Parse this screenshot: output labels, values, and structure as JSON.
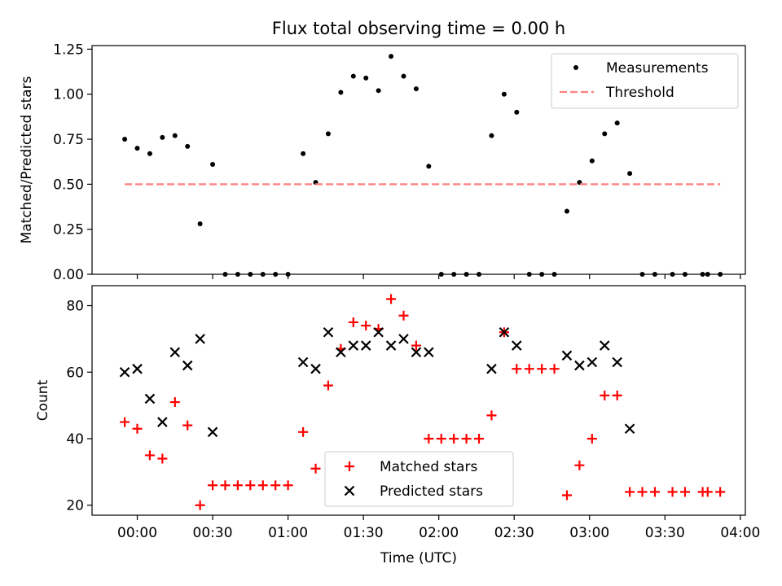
{
  "figure": {
    "title": "Flux total observing time = 0.00 h"
  },
  "chart_data": [
    {
      "type": "scatter",
      "panel": "top",
      "title": "Flux total observing time = 0.00 h",
      "xlabel": "",
      "ylabel": "Matched/Predicted stars",
      "xlim": [
        "23:42",
        "04:02"
      ],
      "ylim": [
        0.0,
        1.27
      ],
      "yticks": [
        "0.00",
        "0.25",
        "0.50",
        "0.75",
        "1.00",
        "1.25"
      ],
      "grid": false,
      "legend": "top-right",
      "series": [
        {
          "name": "Measurements",
          "color": "#000000",
          "marker": "dot",
          "points": [
            [
              "23:55",
              0.75
            ],
            [
              "00:00",
              0.7
            ],
            [
              "00:05",
              0.67
            ],
            [
              "00:10",
              0.76
            ],
            [
              "00:15",
              0.77
            ],
            [
              "00:20",
              0.71
            ],
            [
              "00:25",
              0.28
            ],
            [
              "00:30",
              0.61
            ],
            [
              "00:35",
              0.0
            ],
            [
              "00:40",
              0.0
            ],
            [
              "00:45",
              0.0
            ],
            [
              "00:50",
              0.0
            ],
            [
              "00:55",
              0.0
            ],
            [
              "01:00",
              0.0
            ],
            [
              "01:06",
              0.67
            ],
            [
              "01:11",
              0.51
            ],
            [
              "01:16",
              0.78
            ],
            [
              "01:21",
              1.01
            ],
            [
              "01:26",
              1.1
            ],
            [
              "01:31",
              1.09
            ],
            [
              "01:36",
              1.02
            ],
            [
              "01:41",
              1.21
            ],
            [
              "01:46",
              1.1
            ],
            [
              "01:51",
              1.03
            ],
            [
              "01:56",
              0.6
            ],
            [
              "02:01",
              0.0
            ],
            [
              "02:06",
              0.0
            ],
            [
              "02:11",
              0.0
            ],
            [
              "02:16",
              0.0
            ],
            [
              "02:21",
              0.77
            ],
            [
              "02:26",
              1.0
            ],
            [
              "02:31",
              0.9
            ],
            [
              "02:36",
              0.0
            ],
            [
              "02:41",
              0.0
            ],
            [
              "02:46",
              0.0
            ],
            [
              "02:51",
              0.35
            ],
            [
              "02:56",
              0.51
            ],
            [
              "03:01",
              0.63
            ],
            [
              "03:06",
              0.78
            ],
            [
              "03:11",
              0.84
            ],
            [
              "03:16",
              0.56
            ],
            [
              "03:21",
              0.0
            ],
            [
              "03:26",
              0.0
            ],
            [
              "03:33",
              0.0
            ],
            [
              "03:38",
              0.0
            ],
            [
              "03:45",
              0.0
            ],
            [
              "03:47",
              0.0
            ],
            [
              "03:52",
              0.0
            ]
          ]
        },
        {
          "name": "Threshold",
          "color": "#ff8080",
          "style": "dashed",
          "points": [
            [
              "23:55",
              0.5
            ],
            [
              "03:52",
              0.5
            ]
          ]
        }
      ]
    },
    {
      "type": "scatter",
      "panel": "bottom",
      "xlabel": "Time (UTC)",
      "ylabel": "Count",
      "xlim": [
        "23:42",
        "04:02"
      ],
      "ylim": [
        17,
        86
      ],
      "xticks": [
        "00:00",
        "00:30",
        "01:00",
        "01:30",
        "02:00",
        "02:30",
        "03:00",
        "03:30",
        "04:00"
      ],
      "yticks": [
        "20",
        "40",
        "60",
        "80"
      ],
      "grid": false,
      "legend": "bottom-center",
      "series": [
        {
          "name": "Matched stars",
          "color": "#ff0000",
          "marker": "plus",
          "points": [
            [
              "23:55",
              45
            ],
            [
              "00:00",
              43
            ],
            [
              "00:05",
              35
            ],
            [
              "00:10",
              34
            ],
            [
              "00:15",
              51
            ],
            [
              "00:20",
              44
            ],
            [
              "00:25",
              20
            ],
            [
              "00:30",
              26
            ],
            [
              "00:35",
              26
            ],
            [
              "00:40",
              26
            ],
            [
              "00:45",
              26
            ],
            [
              "00:50",
              26
            ],
            [
              "00:55",
              26
            ],
            [
              "01:00",
              26
            ],
            [
              "01:06",
              42
            ],
            [
              "01:11",
              31
            ],
            [
              "01:16",
              56
            ],
            [
              "01:21",
              67
            ],
            [
              "01:26",
              75
            ],
            [
              "01:31",
              74
            ],
            [
              "01:36",
              73
            ],
            [
              "01:41",
              82
            ],
            [
              "01:46",
              77
            ],
            [
              "01:51",
              68
            ],
            [
              "01:56",
              40
            ],
            [
              "02:01",
              40
            ],
            [
              "02:06",
              40
            ],
            [
              "02:11",
              40
            ],
            [
              "02:16",
              40
            ],
            [
              "02:21",
              47
            ],
            [
              "02:26",
              72
            ],
            [
              "02:31",
              61
            ],
            [
              "02:36",
              61
            ],
            [
              "02:41",
              61
            ],
            [
              "02:46",
              61
            ],
            [
              "02:51",
              23
            ],
            [
              "02:56",
              32
            ],
            [
              "03:01",
              40
            ],
            [
              "03:06",
              53
            ],
            [
              "03:11",
              53
            ],
            [
              "03:16",
              24
            ],
            [
              "03:21",
              24
            ],
            [
              "03:26",
              24
            ],
            [
              "03:33",
              24
            ],
            [
              "03:38",
              24
            ],
            [
              "03:45",
              24
            ],
            [
              "03:47",
              24
            ],
            [
              "03:52",
              24
            ]
          ]
        },
        {
          "name": "Predicted stars",
          "color": "#000000",
          "marker": "x",
          "points": [
            [
              "23:55",
              60
            ],
            [
              "00:00",
              61
            ],
            [
              "00:05",
              52
            ],
            [
              "00:10",
              45
            ],
            [
              "00:15",
              66
            ],
            [
              "00:20",
              62
            ],
            [
              "00:25",
              70
            ],
            [
              "00:30",
              42
            ],
            [
              "01:06",
              63
            ],
            [
              "01:11",
              61
            ],
            [
              "01:16",
              72
            ],
            [
              "01:21",
              66
            ],
            [
              "01:26",
              68
            ],
            [
              "01:31",
              68
            ],
            [
              "01:36",
              72
            ],
            [
              "01:41",
              68
            ],
            [
              "01:46",
              70
            ],
            [
              "01:51",
              66
            ],
            [
              "01:56",
              66
            ],
            [
              "02:21",
              61
            ],
            [
              "02:26",
              72
            ],
            [
              "02:31",
              68
            ],
            [
              "02:51",
              65
            ],
            [
              "02:56",
              62
            ],
            [
              "03:01",
              63
            ],
            [
              "03:06",
              68
            ],
            [
              "03:11",
              63
            ],
            [
              "03:16",
              43
            ]
          ]
        }
      ]
    }
  ]
}
